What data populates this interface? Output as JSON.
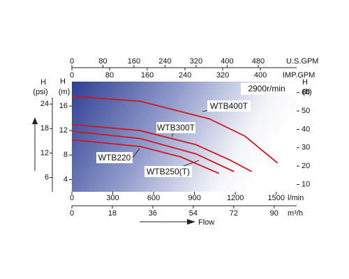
{
  "chart_data": {
    "type": "line",
    "speed_label": "2900r/min",
    "flow_label": "Flow",
    "x_axes": {
      "lpm": {
        "label": "l/min",
        "xlim": [
          0,
          1650
        ],
        "xticks": [
          0,
          300,
          600,
          900,
          1200,
          1500
        ]
      },
      "m3h": {
        "label": "m³/h",
        "xlim": [
          0,
          100
        ],
        "xticks": [
          0,
          18,
          36,
          54,
          72,
          90
        ]
      },
      "usgpm": {
        "label": "U.S.GPM",
        "xlim": [
          0,
          579
        ],
        "xticks": [
          0,
          80,
          160,
          240,
          320,
          400,
          480
        ]
      },
      "impgpm": {
        "label": "IMP.GPM",
        "xlim": [
          0,
          477
        ],
        "xticks": [
          0,
          80,
          160,
          240,
          320,
          400
        ]
      }
    },
    "y_axes": {
      "m": {
        "label": "H",
        "unit": "(m)",
        "ylim": [
          2,
          20
        ],
        "yticks": [
          4,
          8,
          12,
          16
        ]
      },
      "psi": {
        "label": "H",
        "unit": "(psi)",
        "ylim": [
          2.5,
          29.5
        ],
        "yticks": [
          6,
          12,
          18,
          24
        ]
      },
      "ft": {
        "label": "H",
        "unit": "(ft)",
        "ylim": [
          6,
          66
        ],
        "yticks": [
          10,
          20,
          30,
          40,
          50,
          60
        ]
      }
    },
    "series": [
      {
        "name": "WTB400T",
        "color": "#d01818",
        "x": [
          0,
          500,
          1010,
          1270,
          1510
        ],
        "values": [
          17.6,
          16.8,
          13.9,
          11.1,
          6.7
        ]
      },
      {
        "name": "WTB300T",
        "color": "#d01818",
        "x": [
          0,
          500,
          910,
          1160,
          1320
        ],
        "values": [
          13.0,
          12.0,
          9.7,
          7.2,
          5.3
        ]
      },
      {
        "name": "WTB250(T)",
        "color": "#d01818",
        "x": [
          0,
          500,
          910,
          1190
        ],
        "values": [
          11.9,
          10.7,
          8.2,
          5.3
        ]
      },
      {
        "name": "WTB220",
        "color": "#d01818",
        "x": [
          0,
          500,
          800,
          1080
        ],
        "values": [
          10.5,
          9.4,
          7.7,
          5.0
        ]
      }
    ]
  }
}
